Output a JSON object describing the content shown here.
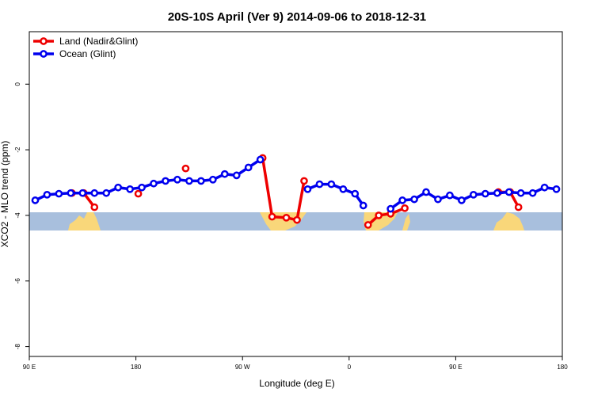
{
  "chart_data": {
    "type": "line",
    "title": "20S-10S April (Ver 9)   2014-09-06 to 2018-12-31",
    "x_label": "Longitude (deg E)",
    "y_label": "XCO2 - MLO trend (ppm)",
    "xlim": [
      90,
      540
    ],
    "xticks": [
      {
        "value": 90,
        "label": "90 E"
      },
      180,
      {
        "value": 270,
        "label": "90 W"
      },
      {
        "value": 360,
        "label": "0"
      },
      {
        "value": 450,
        "label": "90 E"
      },
      {
        "value": 540,
        "label": "180"
      }
    ],
    "ylim": [
      -8.3,
      1.6
    ],
    "yticks": [
      0,
      -2,
      -4,
      -6,
      -8
    ],
    "legend": "top-left",
    "series": [
      {
        "name": "Land (Nadir&Glint)",
        "color": "#ee0000",
        "x": [
          126,
          136,
          145,
          null,
          182,
          null,
          222,
          null,
          287,
          295,
          307,
          316,
          322,
          null,
          376,
          385,
          395,
          407,
          null,
          486,
          496,
          503
        ],
        "values": [
          -3.32,
          -3.32,
          -3.75,
          null,
          -3.34,
          null,
          -2.57,
          null,
          -2.25,
          -4.04,
          -4.07,
          -4.14,
          -2.95,
          null,
          -4.29,
          -4.0,
          -3.95,
          -3.78,
          null,
          -3.29,
          -3.29,
          -3.75
        ]
      },
      {
        "name": "Ocean (Glint)",
        "color": "#0000ee",
        "x": [
          95,
          105,
          115,
          125,
          135,
          145,
          155,
          165,
          175,
          185,
          195,
          205,
          215,
          225,
          235,
          245,
          255,
          265,
          275,
          285,
          null,
          325,
          335,
          345,
          355,
          365,
          372,
          null,
          395,
          405,
          415,
          425,
          435,
          445,
          455,
          465,
          475,
          485,
          495,
          505,
          515,
          525,
          535
        ],
        "values": [
          -3.54,
          -3.37,
          -3.34,
          -3.32,
          -3.32,
          -3.32,
          -3.32,
          -3.15,
          -3.2,
          -3.15,
          -3.03,
          -2.95,
          -2.91,
          -2.95,
          -2.95,
          -2.91,
          -2.74,
          -2.78,
          -2.54,
          -2.3,
          null,
          -3.2,
          -3.05,
          -3.05,
          -3.2,
          -3.34,
          -3.7,
          null,
          -3.8,
          -3.54,
          -3.51,
          -3.29,
          -3.51,
          -3.39,
          -3.54,
          -3.37,
          -3.34,
          -3.32,
          -3.29,
          -3.32,
          -3.32,
          -3.15,
          -3.2
        ]
      }
    ]
  }
}
